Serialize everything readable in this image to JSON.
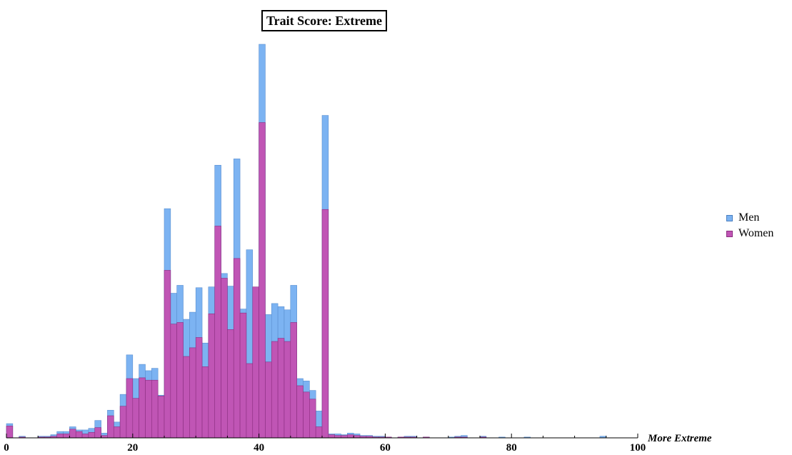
{
  "chart_data": {
    "type": "bar",
    "title": "Trait Score: Extreme",
    "xlabel": "More Extreme",
    "ylabel": "",
    "xlim": [
      0,
      100
    ],
    "xticks": [
      0,
      20,
      40,
      60,
      80,
      100
    ],
    "bin_width": 1,
    "grid": false,
    "legend_position": "right",
    "series": [
      {
        "name": "Men",
        "color": "#7cb3f2",
        "values": [
          [
            0,
            1.8
          ],
          [
            2,
            0.2
          ],
          [
            5,
            0.2
          ],
          [
            6,
            0.2
          ],
          [
            7,
            0.4
          ],
          [
            8,
            0.8
          ],
          [
            9,
            0.8
          ],
          [
            10,
            1.4
          ],
          [
            11,
            1.0
          ],
          [
            12,
            1.0
          ],
          [
            13,
            1.2
          ],
          [
            14,
            2.2
          ],
          [
            15,
            0.6
          ],
          [
            16,
            3.5
          ],
          [
            17,
            2.0
          ],
          [
            18,
            5.5
          ],
          [
            19,
            10.5
          ],
          [
            20,
            7.5
          ],
          [
            21,
            9.3
          ],
          [
            22,
            8.5
          ],
          [
            23,
            8.8
          ],
          [
            24,
            5.4
          ],
          [
            25,
            29.0
          ],
          [
            26,
            18.3
          ],
          [
            27,
            19.3
          ],
          [
            28,
            15.0
          ],
          [
            29,
            15.9
          ],
          [
            30,
            19.0
          ],
          [
            31,
            12.0
          ],
          [
            32,
            19.1
          ],
          [
            33,
            34.5
          ],
          [
            34,
            20.8
          ],
          [
            35,
            19.2
          ],
          [
            36,
            35.3
          ],
          [
            37,
            16.3
          ],
          [
            38,
            23.8
          ],
          [
            39,
            13.3
          ],
          [
            40,
            49.8
          ],
          [
            41,
            15.6
          ],
          [
            42,
            17.0
          ],
          [
            43,
            16.6
          ],
          [
            44,
            16.2
          ],
          [
            45,
            19.3
          ],
          [
            46,
            7.5
          ],
          [
            47,
            7.2
          ],
          [
            48,
            6.0
          ],
          [
            49,
            3.4
          ],
          [
            50,
            40.8
          ],
          [
            51,
            0.5
          ],
          [
            52,
            0.5
          ],
          [
            53,
            0.4
          ],
          [
            54,
            0.6
          ],
          [
            55,
            0.5
          ],
          [
            56,
            0.3
          ],
          [
            57,
            0.3
          ],
          [
            58,
            0.2
          ],
          [
            59,
            0.2
          ],
          [
            60,
            0.1
          ],
          [
            62,
            0.1
          ],
          [
            63,
            0.2
          ],
          [
            64,
            0.2
          ],
          [
            66,
            0.1
          ],
          [
            70,
            0.1
          ],
          [
            71,
            0.2
          ],
          [
            72,
            0.3
          ],
          [
            75,
            0.2
          ],
          [
            78,
            0.1
          ],
          [
            82,
            0.1
          ],
          [
            94,
            0.2
          ]
        ]
      },
      {
        "name": "Women",
        "color": "#c055b5",
        "values": [
          [
            0,
            1.5
          ],
          [
            2,
            0.1
          ],
          [
            5,
            0.1
          ],
          [
            6,
            0.1
          ],
          [
            7,
            0.2
          ],
          [
            8,
            0.5
          ],
          [
            9,
            0.5
          ],
          [
            10,
            1.1
          ],
          [
            11,
            0.8
          ],
          [
            12,
            0.5
          ],
          [
            13,
            0.7
          ],
          [
            14,
            1.3
          ],
          [
            15,
            0.3
          ],
          [
            16,
            2.8
          ],
          [
            17,
            1.4
          ],
          [
            18,
            4.0
          ],
          [
            19,
            7.5
          ],
          [
            20,
            5.0
          ],
          [
            21,
            7.6
          ],
          [
            22,
            7.3
          ],
          [
            23,
            7.3
          ],
          [
            24,
            5.3
          ],
          [
            25,
            21.2
          ],
          [
            26,
            14.4
          ],
          [
            27,
            14.6
          ],
          [
            28,
            10.3
          ],
          [
            29,
            11.4
          ],
          [
            30,
            12.7
          ],
          [
            31,
            9.0
          ],
          [
            32,
            15.7
          ],
          [
            33,
            26.8
          ],
          [
            34,
            20.2
          ],
          [
            35,
            13.7
          ],
          [
            36,
            22.7
          ],
          [
            37,
            15.8
          ],
          [
            38,
            9.4
          ],
          [
            39,
            19.1
          ],
          [
            40,
            39.9
          ],
          [
            41,
            9.6
          ],
          [
            42,
            12.2
          ],
          [
            43,
            12.6
          ],
          [
            44,
            12.2
          ],
          [
            45,
            14.6
          ],
          [
            46,
            6.6
          ],
          [
            47,
            5.8
          ],
          [
            48,
            4.9
          ],
          [
            49,
            1.4
          ],
          [
            50,
            28.9
          ],
          [
            51,
            0.4
          ],
          [
            52,
            0.3
          ],
          [
            53,
            0.3
          ],
          [
            54,
            0.4
          ],
          [
            55,
            0.3
          ],
          [
            56,
            0.2
          ],
          [
            57,
            0.2
          ],
          [
            58,
            0.1
          ],
          [
            59,
            0.1
          ],
          [
            60,
            0.1
          ],
          [
            62,
            0.1
          ],
          [
            63,
            0.1
          ],
          [
            64,
            0.1
          ],
          [
            66,
            0.1
          ],
          [
            71,
            0.1
          ],
          [
            72,
            0.1
          ],
          [
            75,
            0.1
          ]
        ]
      }
    ]
  }
}
